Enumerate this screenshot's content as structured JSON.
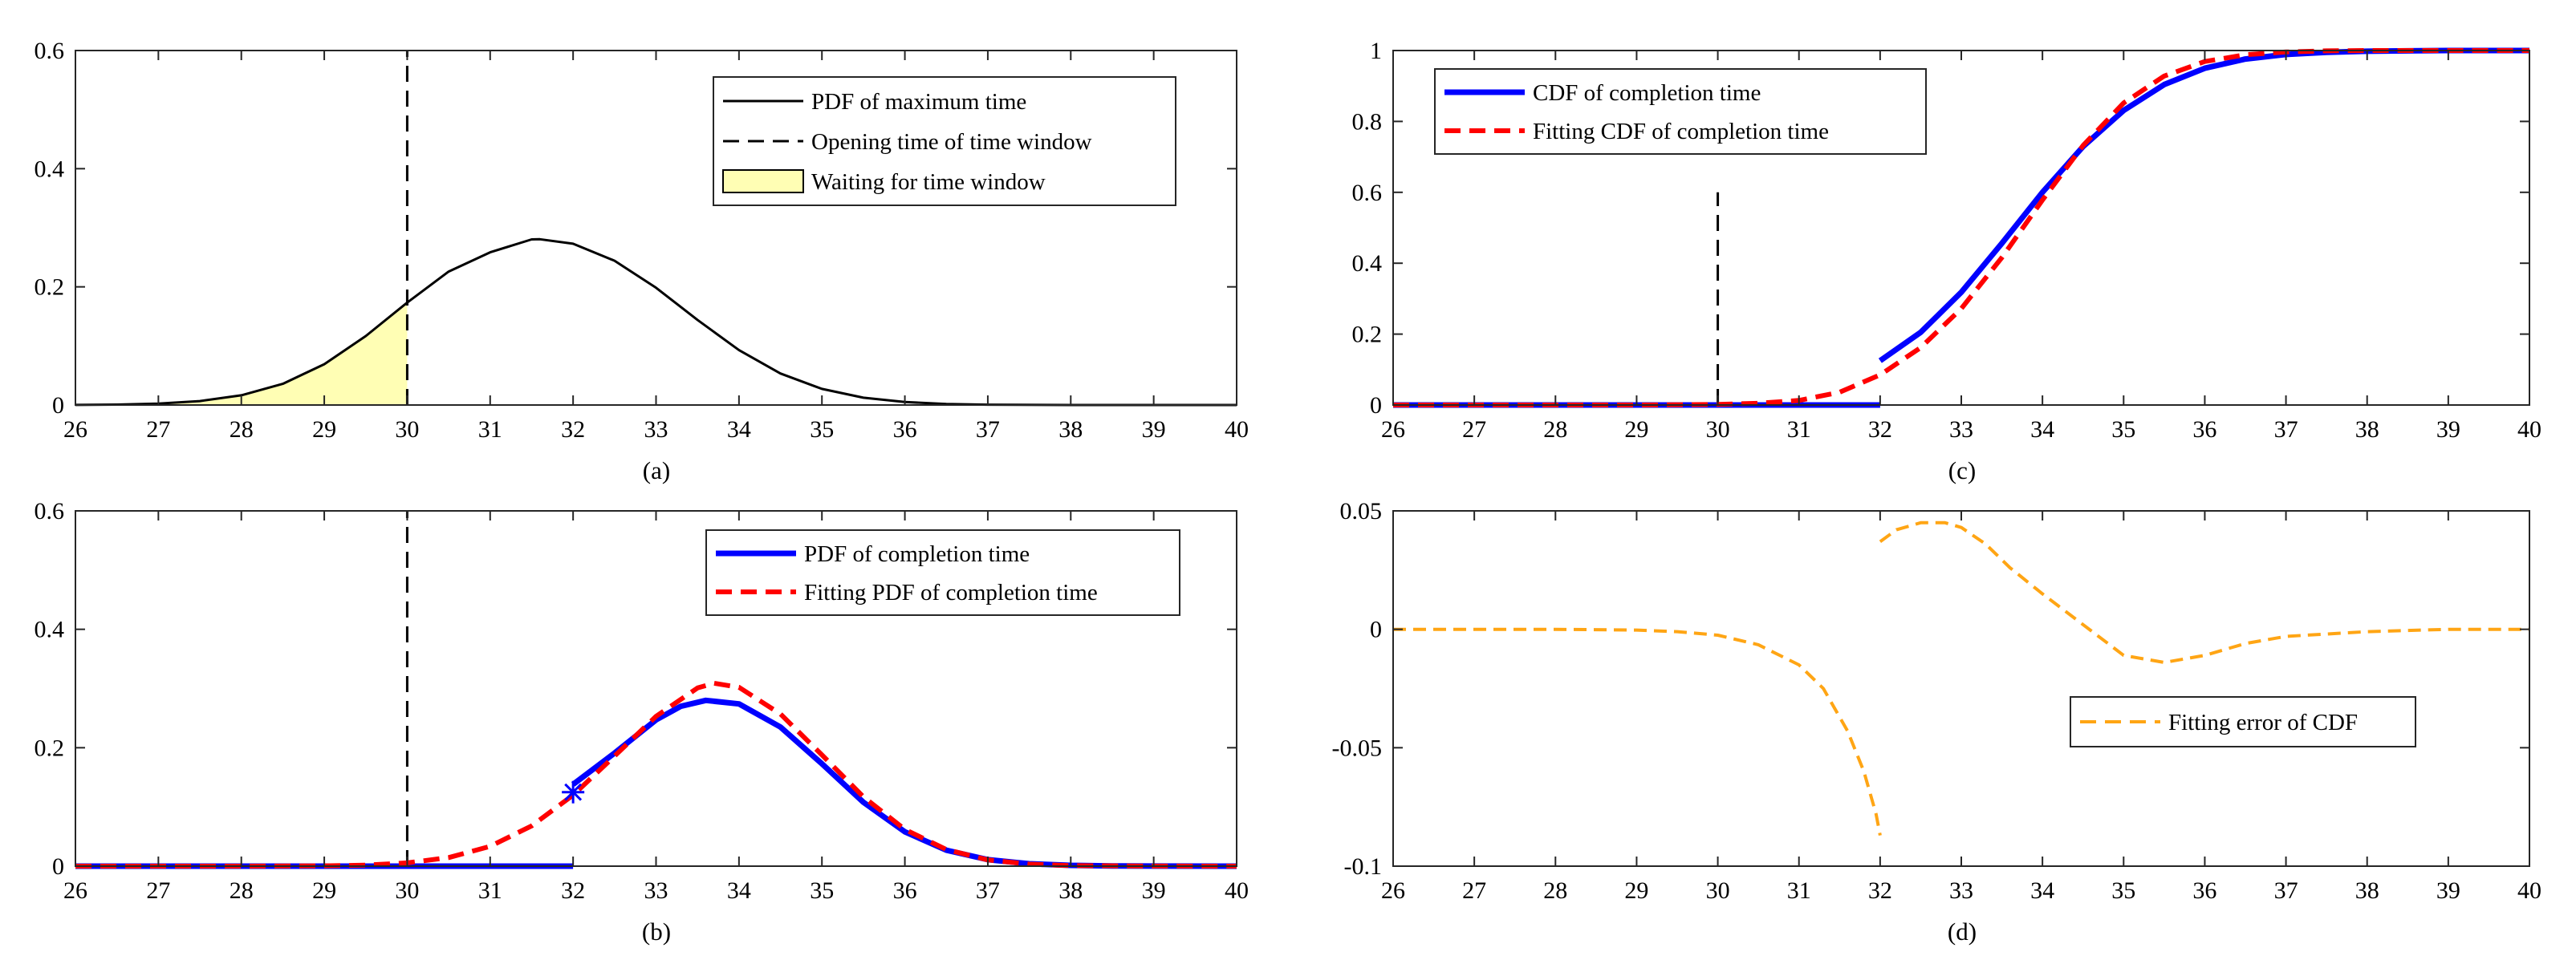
{
  "figure": {
    "background": "#ffffff"
  },
  "chart_data": [
    {
      "id": "a",
      "type": "line",
      "caption": "(a)",
      "xlim": [
        26,
        40
      ],
      "ylim": [
        0,
        0.6
      ],
      "xticks": [
        "26",
        "27",
        "28",
        "29",
        "30",
        "31",
        "32",
        "33",
        "34",
        "35",
        "36",
        "37",
        "38",
        "39",
        "40"
      ],
      "yticks": [
        "0",
        "0.2",
        "0.4",
        "0.6"
      ],
      "series": [
        {
          "name": "PDF of maximum time",
          "color": "#000000",
          "style": "solid",
          "x": [
            26,
            26.5,
            27,
            27.5,
            28,
            28.5,
            29,
            29.5,
            30,
            30.5,
            31,
            31.5,
            31.6,
            32,
            32.5,
            33,
            33.5,
            34,
            34.5,
            35,
            35.5,
            36,
            36.5,
            37,
            38,
            39,
            40
          ],
          "y": [
            0.0002,
            0.0007,
            0.0023,
            0.0066,
            0.0164,
            0.0359,
            0.0691,
            0.1168,
            0.1734,
            0.2259,
            0.2585,
            0.2803,
            0.2806,
            0.273,
            0.2442,
            0.1985,
            0.144,
            0.0929,
            0.0534,
            0.0273,
            0.0124,
            0.005,
            0.0018,
            0.0006,
            0.0,
            0.0,
            0.0
          ]
        }
      ],
      "vlines": [
        {
          "name": "Opening time of time window",
          "x": 30,
          "y": [
            0,
            0.6
          ],
          "color": "#000000",
          "style": "dashed"
        }
      ],
      "shaded_region": {
        "name": "Waiting for time window",
        "x_range": [
          26,
          30
        ],
        "under_series": "PDF of maximum time",
        "color": "#fffeb4"
      },
      "legend": [
        {
          "label": "PDF of maximum time",
          "kind": "line",
          "color": "#000000",
          "style": "solid"
        },
        {
          "label": "Opening time of time window",
          "kind": "line",
          "color": "#000000",
          "style": "dashed"
        },
        {
          "label": "Waiting for time window",
          "kind": "patch",
          "color": "#fffeb4"
        }
      ],
      "legend_position": "top-right"
    },
    {
      "id": "b",
      "type": "line",
      "caption": "(b)",
      "xlim": [
        26,
        40
      ],
      "ylim": [
        0,
        0.6
      ],
      "xticks": [
        "26",
        "27",
        "28",
        "29",
        "30",
        "31",
        "32",
        "33",
        "34",
        "35",
        "36",
        "37",
        "38",
        "39",
        "40"
      ],
      "yticks": [
        "0",
        "0.2",
        "0.4",
        "0.6"
      ],
      "series": [
        {
          "name": "PDF of completion time",
          "color": "#0000ff",
          "style": "solid",
          "segments": [
            {
              "x": [
                26,
                32
              ],
              "y": [
                0,
                0
              ]
            },
            {
              "x": [
                32,
                32.5,
                33,
                33.3,
                33.6,
                34,
                34.5,
                35,
                35.5,
                36,
                36.5,
                37,
                37.5,
                38,
                38.5,
                39,
                40
              ],
              "y": [
                0.138,
                0.191,
                0.247,
                0.27,
                0.28,
                0.274,
                0.235,
                0.173,
                0.108,
                0.058,
                0.027,
                0.011,
                0.004,
                0.0014,
                0.0004,
                0.0001,
                0
              ]
            }
          ]
        },
        {
          "name": "Fitting PDF of completion time",
          "color": "#ff0000",
          "style": "dashed",
          "x": [
            26,
            27,
            28,
            29,
            29.5,
            30,
            30.5,
            31,
            31.5,
            32,
            32.5,
            33,
            33.5,
            33.7,
            34,
            34.5,
            35,
            35.5,
            36,
            36.5,
            37,
            37.5,
            38,
            39,
            40
          ],
          "y": [
            0,
            0,
            0,
            0.0005,
            0.0018,
            0.0055,
            0.0145,
            0.0335,
            0.068,
            0.12,
            0.186,
            0.253,
            0.301,
            0.309,
            0.302,
            0.257,
            0.188,
            0.117,
            0.062,
            0.028,
            0.0105,
            0.0034,
            0.0009,
            0.0001,
            0
          ]
        }
      ],
      "markers": [
        {
          "name": "discontinuity-marker",
          "x": 32,
          "y": 0.125,
          "symbol": "*",
          "color": "#0000ff"
        }
      ],
      "vlines": [
        {
          "x": 30,
          "y": [
            0,
            0.6
          ],
          "color": "#000000",
          "style": "dashed"
        }
      ],
      "legend": [
        {
          "label": "PDF of completion time",
          "kind": "line",
          "color": "#0000ff",
          "style": "solid"
        },
        {
          "label": "Fitting PDF of completion time",
          "kind": "line",
          "color": "#ff0000",
          "style": "dashed"
        }
      ],
      "legend_position": "top-right"
    },
    {
      "id": "c",
      "type": "line",
      "caption": "(c)",
      "xlim": [
        26,
        40
      ],
      "ylim": [
        0,
        1
      ],
      "xticks": [
        "26",
        "27",
        "28",
        "29",
        "30",
        "31",
        "32",
        "33",
        "34",
        "35",
        "36",
        "37",
        "38",
        "39",
        "40"
      ],
      "yticks": [
        "0",
        "0.2",
        "0.4",
        "0.6",
        "0.8",
        "1"
      ],
      "series": [
        {
          "name": "CDF of completion time",
          "color": "#0000ff",
          "style": "solid",
          "segments": [
            {
              "x": [
                26,
                32
              ],
              "y": [
                0,
                0
              ]
            },
            {
              "x": [
                32,
                32.5,
                33,
                33.5,
                34,
                34.5,
                35,
                35.5,
                36,
                36.5,
                37,
                37.5,
                38,
                38.5,
                39,
                40
              ],
              "y": [
                0.125,
                0.205,
                0.318,
                0.456,
                0.6,
                0.729,
                0.831,
                0.904,
                0.95,
                0.976,
                0.989,
                0.995,
                0.998,
                0.999,
                1.0,
                1.0
              ]
            }
          ]
        },
        {
          "name": "Fitting CDF of completion time",
          "color": "#ff0000",
          "style": "dashed",
          "x": [
            26,
            27,
            28,
            29,
            30,
            30.5,
            31,
            31.5,
            32,
            32.5,
            33,
            33.5,
            34,
            34.5,
            35,
            35.5,
            36,
            36.5,
            37,
            37.5,
            38,
            39,
            40
          ],
          "y": [
            0,
            0,
            0,
            0,
            0.0015,
            0.005,
            0.013,
            0.036,
            0.085,
            0.162,
            0.272,
            0.416,
            0.578,
            0.732,
            0.852,
            0.928,
            0.969,
            0.988,
            0.996,
            0.999,
            1.0,
            1.0,
            1.0
          ]
        }
      ],
      "vlines": [
        {
          "x": 30,
          "y": [
            0,
            0.6
          ],
          "color": "#000000",
          "style": "dashed"
        }
      ],
      "legend": [
        {
          "label": "CDF of completion time",
          "kind": "line",
          "color": "#0000ff",
          "style": "solid"
        },
        {
          "label": "Fitting CDF of completion time",
          "kind": "line",
          "color": "#ff0000",
          "style": "dashed"
        }
      ],
      "legend_position": "top-left"
    },
    {
      "id": "d",
      "type": "line",
      "caption": "(d)",
      "xlim": [
        26,
        40
      ],
      "ylim": [
        -0.1,
        0.05
      ],
      "xticks": [
        "26",
        "27",
        "28",
        "29",
        "30",
        "31",
        "32",
        "33",
        "34",
        "35",
        "36",
        "37",
        "38",
        "39",
        "40"
      ],
      "yticks": [
        "-0.1",
        "-0.05",
        "0",
        "0.05"
      ],
      "series": [
        {
          "name": "Fitting error of CDF",
          "color": "#ffa514",
          "style": "dashed",
          "segments": [
            {
              "x": [
                26,
                27,
                28,
                29,
                29.5,
                30,
                30.5,
                31,
                31.3,
                31.6,
                31.8,
                31.95,
                32
              ],
              "y": [
                0,
                0,
                0,
                -0.0003,
                -0.001,
                -0.0025,
                -0.0065,
                -0.015,
                -0.025,
                -0.043,
                -0.06,
                -0.078,
                -0.087
              ]
            },
            {
              "x": [
                32,
                32.2,
                32.5,
                32.8,
                33,
                33.3,
                33.6,
                34,
                34.5,
                35,
                35.5,
                36,
                36.5,
                37,
                38,
                39,
                40
              ],
              "y": [
                0.037,
                0.042,
                0.045,
                0.045,
                0.043,
                0.036,
                0.026,
                0.015,
                0.002,
                -0.011,
                -0.014,
                -0.011,
                -0.006,
                -0.003,
                -0.001,
                0,
                0
              ]
            }
          ]
        }
      ],
      "legend": [
        {
          "label": "Fitting error of CDF",
          "kind": "line",
          "color": "#ffa514",
          "style": "dashed"
        }
      ],
      "legend_position": "center-right"
    }
  ]
}
